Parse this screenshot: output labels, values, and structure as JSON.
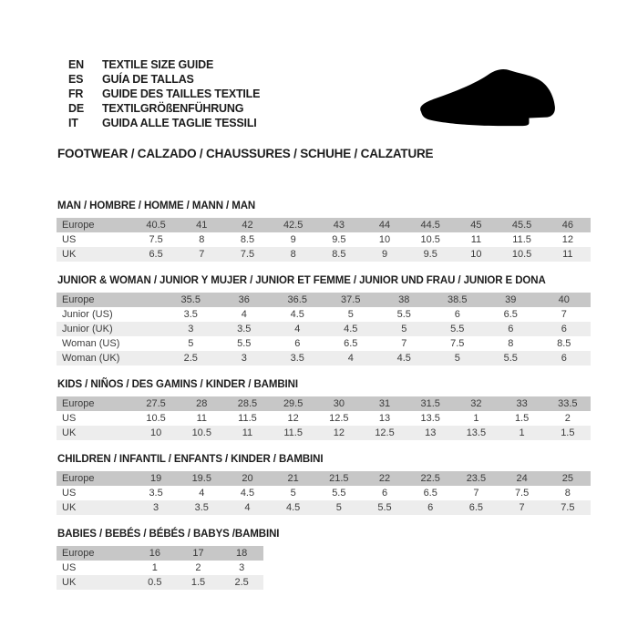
{
  "header": {
    "languages": [
      {
        "code": "EN",
        "label": "TEXTILE SIZE GUIDE"
      },
      {
        "code": "ES",
        "label": "GUÍA DE TALLAS"
      },
      {
        "code": "FR",
        "label": "GUIDE DES TAILLES TEXTILE"
      },
      {
        "code": "DE",
        "label": "TEXTILGRÖßENFÜHRUNG"
      },
      {
        "code": "IT",
        "label": "GUIDA ALLE TAGLIE TESSILI"
      }
    ],
    "category_title": "FOOTWEAR / CALZADO / CHAUSSURES / SCHUHE / CALZATURE",
    "shoe_icon": "dress-shoe-icon"
  },
  "colors": {
    "table_header_row": "#c7c7c7",
    "table_shaded_row": "#ededed",
    "text": "#1d1d1d",
    "shoe_silhouette": "#000000"
  },
  "tables": [
    {
      "title": "MAN / HOMBRE / HOMME / MANN / MAN",
      "rows": [
        {
          "label": "Europe",
          "values": [
            "40.5",
            "41",
            "42",
            "42.5",
            "43",
            "44",
            "44.5",
            "45",
            "45.5",
            "46"
          ]
        },
        {
          "label": "US",
          "values": [
            "7.5",
            "8",
            "8.5",
            "9",
            "9.5",
            "10",
            "10.5",
            "11",
            "11.5",
            "12"
          ]
        },
        {
          "label": "UK",
          "values": [
            "6.5",
            "7",
            "7.5",
            "8",
            "8.5",
            "9",
            "9.5",
            "10",
            "10.5",
            "11"
          ]
        }
      ]
    },
    {
      "title": "JUNIOR & WOMAN / JUNIOR Y MUJER / JUNIOR ET FEMME / JUNIOR UND FRAU / JUNIOR E DONA",
      "rows": [
        {
          "label": "Europe",
          "values": [
            "35.5",
            "36",
            "36.5",
            "37.5",
            "38",
            "38.5",
            "39",
            "40"
          ]
        },
        {
          "label": "Junior (US)",
          "values": [
            "3.5",
            "4",
            "4.5",
            "5",
            "5.5",
            "6",
            "6.5",
            "7"
          ]
        },
        {
          "label": "Junior (UK)",
          "values": [
            "3",
            "3.5",
            "4",
            "4.5",
            "5",
            "5.5",
            "6",
            "6"
          ]
        },
        {
          "label": "Woman (US)",
          "values": [
            "5",
            "5.5",
            "6",
            "6.5",
            "7",
            "7.5",
            "8",
            "8.5"
          ]
        },
        {
          "label": "Woman (UK)",
          "values": [
            "2.5",
            "3",
            "3.5",
            "4",
            "4.5",
            "5",
            "5.5",
            "6"
          ]
        }
      ]
    },
    {
      "title": "KIDS / NIÑOS / DES GAMINS / KINDER / BAMBINI",
      "rows": [
        {
          "label": "Europe",
          "values": [
            "27.5",
            "28",
            "28.5",
            "29.5",
            "30",
            "31",
            "31.5",
            "32",
            "33",
            "33.5"
          ]
        },
        {
          "label": "US",
          "values": [
            "10.5",
            "11",
            "11.5",
            "12",
            "12.5",
            "13",
            "13.5",
            "1",
            "1.5",
            "2"
          ]
        },
        {
          "label": "UK",
          "values": [
            "10",
            "10.5",
            "11",
            "11.5",
            "12",
            "12.5",
            "13",
            "13.5",
            "1",
            "1.5"
          ]
        }
      ]
    },
    {
      "title": "CHILDREN / INFANTIL / ENFANTS / KINDER / BAMBINI",
      "rows": [
        {
          "label": "Europe",
          "values": [
            "19",
            "19.5",
            "20",
            "21",
            "21.5",
            "22",
            "22.5",
            "23.5",
            "24",
            "25"
          ]
        },
        {
          "label": "US",
          "values": [
            "3.5",
            "4",
            "4.5",
            "5",
            "5.5",
            "6",
            "6.5",
            "7",
            "7.5",
            "8"
          ]
        },
        {
          "label": "UK",
          "values": [
            "3",
            "3.5",
            "4",
            "4.5",
            "5",
            "5.5",
            "6",
            "6.5",
            "7",
            "7.5"
          ]
        }
      ]
    },
    {
      "title": "BABIES  / BEBÉS / BÉBÉS / BABYS /BAMBINI",
      "rows": [
        {
          "label": "Europe",
          "values": [
            "16",
            "17",
            "18"
          ]
        },
        {
          "label": "US",
          "values": [
            "1",
            "2",
            "3"
          ]
        },
        {
          "label": "UK",
          "values": [
            "0.5",
            "1.5",
            "2.5"
          ]
        }
      ]
    }
  ]
}
